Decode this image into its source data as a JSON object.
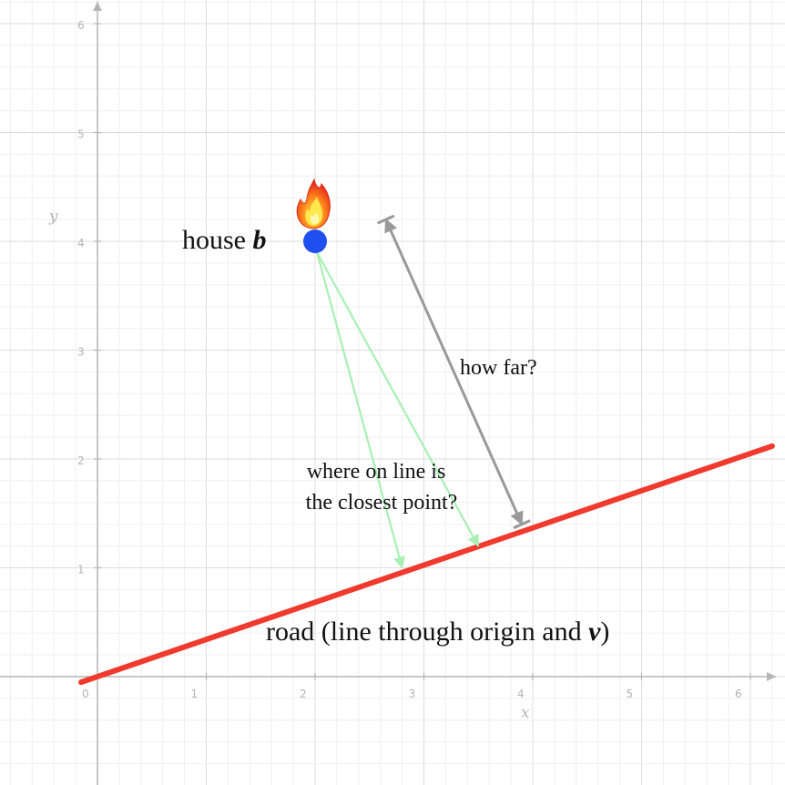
{
  "axes": {
    "x_label": "x",
    "y_label": "y",
    "x_ticks": [
      "0",
      "1",
      "2",
      "3",
      "4",
      "5",
      "6"
    ],
    "y_ticks": [
      "1",
      "2",
      "3",
      "4",
      "5",
      "6"
    ]
  },
  "house": {
    "label": "house ",
    "symbol": "b",
    "point": [
      2,
      4
    ],
    "color": "#1f4ff0",
    "icon": "fire-icon"
  },
  "road": {
    "label": "road (line through origin and ",
    "symbol": "v",
    "label_end": ")",
    "through": [
      [
        0,
        0
      ],
      [
        6,
        2.05
      ]
    ],
    "color": "#f03a2e"
  },
  "guesses": {
    "targets": [
      [
        2.8,
        1.0
      ],
      [
        3.5,
        1.2
      ]
    ],
    "color": "#a8f0b4"
  },
  "question_closest": {
    "line1": "where on line is",
    "line2": "the closest point?"
  },
  "question_distance": {
    "text": "how far?",
    "from": [
      2.65,
      4.2
    ],
    "to": [
      3.9,
      1.4
    ],
    "color": "#999999"
  }
}
